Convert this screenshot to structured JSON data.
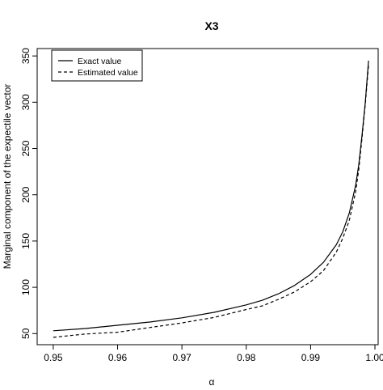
{
  "chart_data": {
    "type": "line",
    "title": "X3",
    "xlabel": "α",
    "ylabel": "Marginal component of the expectile vector",
    "xlim": [
      0.9475,
      1.0005
    ],
    "ylim": [
      38,
      358
    ],
    "x_ticks": [
      0.95,
      0.96,
      0.97,
      0.98,
      0.99,
      1.0
    ],
    "x_tick_labels": [
      "0.95",
      "0.96",
      "0.97",
      "0.98",
      "0.99",
      "1.00"
    ],
    "y_ticks": [
      50,
      100,
      150,
      200,
      250,
      300,
      350
    ],
    "y_tick_labels": [
      "50",
      "100",
      "150",
      "200",
      "250",
      "300",
      "350"
    ],
    "grid": false,
    "legend": {
      "position": "top-left"
    },
    "x": [
      0.95,
      0.955,
      0.96,
      0.965,
      0.97,
      0.975,
      0.98,
      0.9825,
      0.985,
      0.9875,
      0.99,
      0.992,
      0.994,
      0.995,
      0.996,
      0.997,
      0.9975,
      0.998,
      0.9985,
      0.999
    ],
    "series": [
      {
        "name": "Exact value",
        "line_style": "solid",
        "values": [
          53,
          55.5,
          59,
          62.5,
          67,
          73,
          81,
          86,
          93,
          102,
          114,
          127,
          146,
          160,
          180,
          210,
          233,
          265,
          300,
          345
        ]
      },
      {
        "name": "Estimated value",
        "line_style": "dashed",
        "values": [
          46,
          49.5,
          51.5,
          56.5,
          61.5,
          67.5,
          76,
          80,
          87,
          95,
          106,
          118,
          138,
          153,
          172,
          203,
          228,
          262,
          298,
          340
        ]
      }
    ]
  }
}
